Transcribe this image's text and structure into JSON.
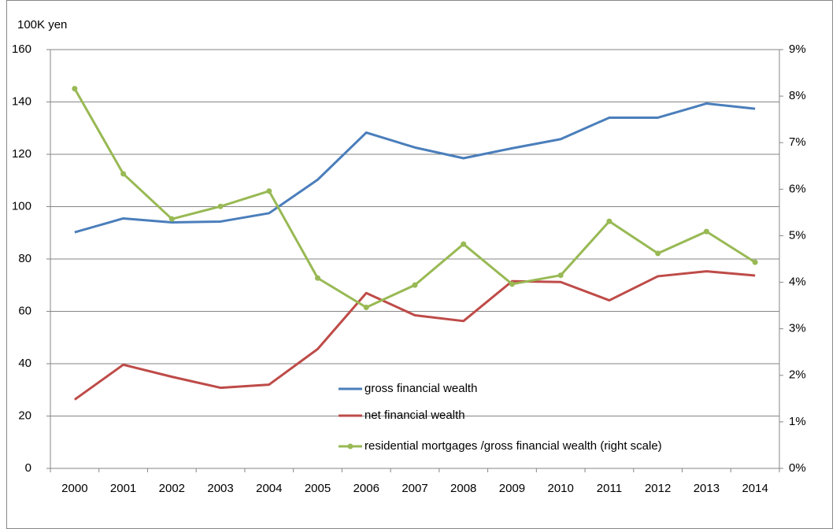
{
  "chart_data": {
    "type": "line",
    "y_axis_label": "100K yen",
    "categories": [
      "2000",
      "2001",
      "2002",
      "2003",
      "2004",
      "2005",
      "2006",
      "2007",
      "2008",
      "2009",
      "2010",
      "2011",
      "2012",
      "2013",
      "2014"
    ],
    "ylim": [
      0,
      160
    ],
    "yticks": [
      0,
      20,
      40,
      60,
      80,
      100,
      120,
      140,
      160
    ],
    "y2lim": [
      0,
      9
    ],
    "y2ticks": [
      {
        "value": 0,
        "label": "0%"
      },
      {
        "value": 1,
        "label": "1%"
      },
      {
        "value": 2,
        "label": "2%"
      },
      {
        "value": 3,
        "label": "3%"
      },
      {
        "value": 4,
        "label": "4%"
      },
      {
        "value": 5,
        "label": "5%"
      },
      {
        "value": 6,
        "label": "6%"
      },
      {
        "value": 7,
        "label": "7%"
      },
      {
        "value": 8,
        "label": "8%"
      },
      {
        "value": 9,
        "label": "9%"
      }
    ],
    "grid": true,
    "series": [
      {
        "name": "gross financial wealth",
        "color": "#4a7ebb",
        "marker": false,
        "values": [
          90.2,
          95.5,
          94,
          94.3,
          97.5,
          110.3,
          128.3,
          122.6,
          118.5,
          122.3,
          125.8,
          134,
          134,
          139.4,
          137.4
        ]
      },
      {
        "name": "net financial wealth",
        "color": "#be4b48",
        "marker": false,
        "values": [
          26.3,
          39.6,
          35,
          30.8,
          32,
          45.6,
          67,
          58.5,
          56.3,
          71.5,
          71.2,
          64.2,
          73.4,
          75.3,
          73.7
        ]
      },
      {
        "name": "residential mortgages /gross financial wealth (right scale)",
        "color": "#98b954",
        "marker": true,
        "axis": "y2",
        "values": [
          8.16,
          6.33,
          5.36,
          5.63,
          5.96,
          4.09,
          3.46,
          3.94,
          4.82,
          3.96,
          4.15,
          5.31,
          4.62,
          5.09,
          4.43
        ]
      }
    ]
  }
}
